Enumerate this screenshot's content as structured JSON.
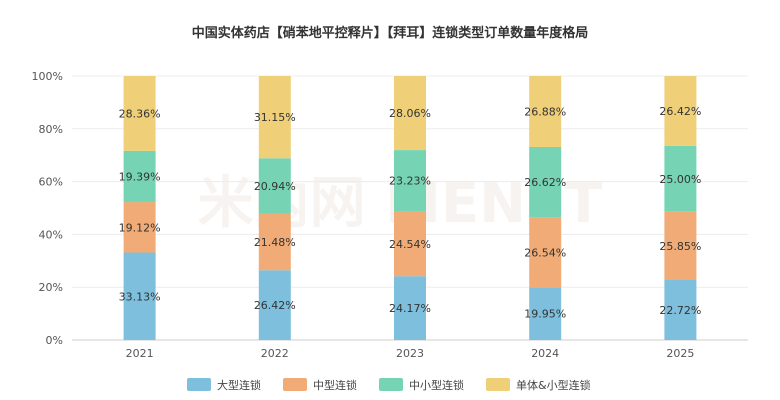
{
  "chart_data": {
    "type": "bar",
    "stacked": "percent",
    "title": "中国实体药店【硝苯地平控释片】【拜耳】连锁类型订单数量年度格局",
    "categories": [
      "2021",
      "2022",
      "2023",
      "2024",
      "2025"
    ],
    "ylim": [
      0,
      100
    ],
    "y_ticks": [
      "0%",
      "20%",
      "40%",
      "60%",
      "80%",
      "100%"
    ],
    "grid": true,
    "legend_position": "bottom",
    "series": [
      {
        "name": "大型连锁",
        "color": "#7dbfdc",
        "values": [
          33.13,
          26.42,
          24.17,
          19.95,
          22.72
        ],
        "labels": [
          "33.13%",
          "26.42%",
          "24.17%",
          "19.95%",
          "22.72%"
        ]
      },
      {
        "name": "中型连锁",
        "color": "#f0ab76",
        "values": [
          19.12,
          21.48,
          24.54,
          26.54,
          25.85
        ],
        "labels": [
          "19.12%",
          "21.48%",
          "24.54%",
          "26.54%",
          "25.85%"
        ]
      },
      {
        "name": "中小型连锁",
        "color": "#76d4b4",
        "values": [
          19.39,
          20.94,
          23.23,
          26.62,
          25.0
        ],
        "labels": [
          "19.39%",
          "20.94%",
          "23.23%",
          "26.62%",
          "25.00%"
        ]
      },
      {
        "name": "单体&小型连锁",
        "color": "#efcf77",
        "values": [
          28.36,
          31.15,
          28.06,
          26.88,
          26.42
        ],
        "labels": [
          "28.36%",
          "31.15%",
          "28.06%",
          "26.88%",
          "26.42%"
        ]
      }
    ]
  },
  "watermark": "米内网 MENET"
}
